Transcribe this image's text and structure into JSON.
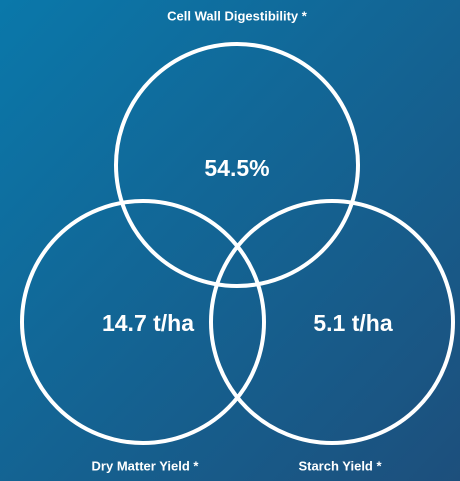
{
  "circles": [
    {
      "label": "Cell Wall Digestibility *",
      "value": "54.5%"
    },
    {
      "label": "Dry Matter Yield *",
      "value": "14.7 t/ha"
    },
    {
      "label": "Starch Yield *",
      "value": "5.1 t/ha"
    }
  ]
}
